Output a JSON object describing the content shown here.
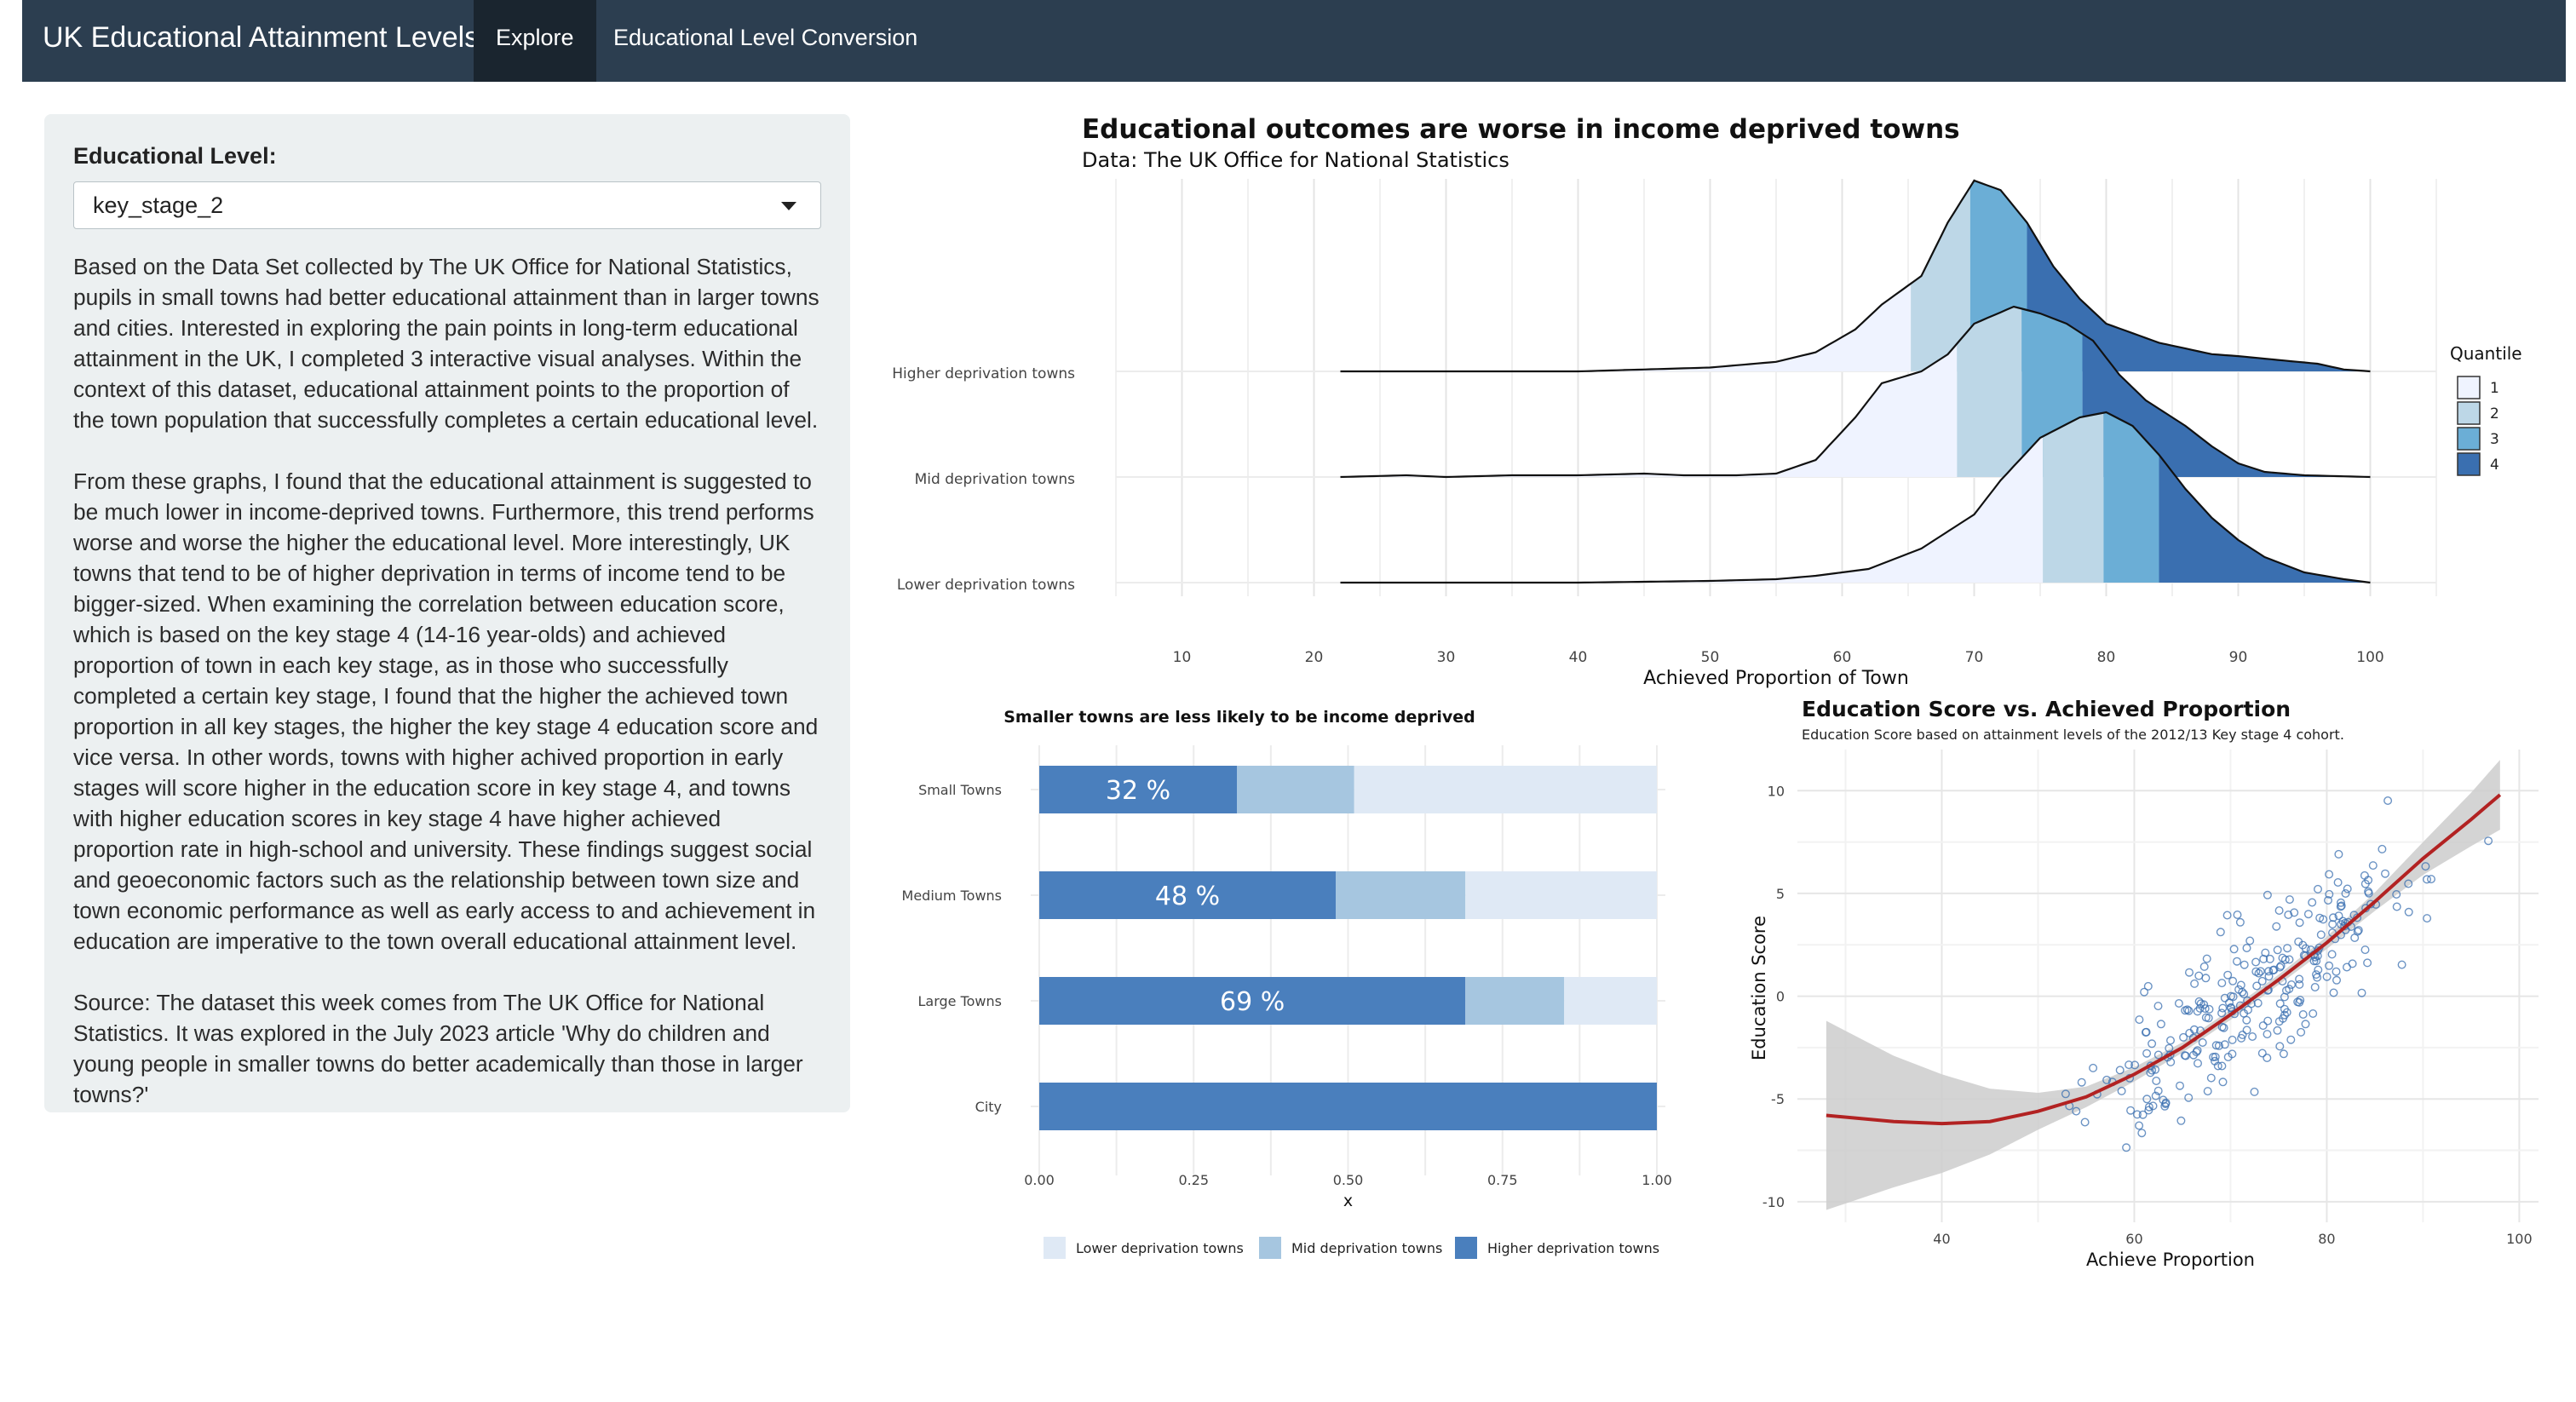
{
  "navbar": {
    "title": "UK Educational Attainment Levels",
    "tabs": [
      {
        "label": "Explore",
        "active": true
      },
      {
        "label": "Educational Level Conversion",
        "active": false
      }
    ],
    "background_color": "#2c3e50"
  },
  "sidebar": {
    "label": "Educational Level:",
    "select_value": "key_stage_2",
    "paragraphs": [
      "Based on the Data Set collected by The UK Office for National Statistics, pupils in small towns had better educational attainment than in larger towns and cities. Interested in exploring the pain points in long-term educational attainment in the UK, I completed 3 interactive visual analyses. Within the context of this dataset, educational attainment points to the proportion of the town population that successfully completes a certain educational level.",
      "From these graphs, I found that the educational attainment is suggested to be much lower in income-deprived towns. Furthermore, this trend performs worse and worse the higher the educational level. More interestingly, UK towns that tend to be of higher deprivation in terms of income tend to be bigger-sized. When examining the correlation between education score, which is based on the key stage 4 (14-16 year-olds) and achieved proportion of town in each key stage, as in those who successfully completed a certain key stage, I found that the higher the achieved town proportion in all key stages, the higher the key stage 4 education score and vice versa. In other words, towns with higher achived proportion in early stages will score higher in the education score in key stage 4, and towns with higher education scores in key stage 4 have higher achieved proportion rate in high-school and university. These findings suggest social and geoeconomic factors such as the relationship between town size and town economic performance as well as early access to and achievement in education are imperative to the town overall educational attainment level.",
      "Source: The dataset this week comes from The UK Office for National Statistics. It was explored in the July 2023 article 'Why do children and young people in smaller towns do better academically than those in larger towns?'"
    ]
  },
  "chart_data": [
    {
      "type": "area",
      "title": "Educational outcomes are worse in income deprived towns",
      "subtitle": "Data: The UK Office for National Statistics",
      "xlabel": "Achieved Proportion of Town",
      "ylabel": "",
      "x_ticks": [
        10,
        20,
        30,
        40,
        50,
        60,
        70,
        80,
        90,
        100
      ],
      "xlim": [
        5,
        105
      ],
      "legend_title": "Quantile",
      "legend_labels": [
        "1",
        "2",
        "3",
        "4"
      ],
      "legend_position": "right",
      "quantile_colors": [
        "#eff3ff",
        "#bdd7e7",
        "#6baed6",
        "#3a6fb0"
      ],
      "series": [
        {
          "name": "Higher deprivation towns",
          "x": [
            22,
            40,
            45,
            50,
            55,
            58,
            61,
            63,
            66,
            68,
            70,
            72,
            74,
            76,
            78,
            80,
            82,
            84,
            86,
            88,
            90,
            93,
            96,
            98,
            100
          ],
          "density": [
            0.0,
            0.0,
            0.01,
            0.02,
            0.05,
            0.1,
            0.22,
            0.35,
            0.5,
            0.78,
            1.0,
            0.95,
            0.78,
            0.55,
            0.38,
            0.25,
            0.2,
            0.15,
            0.12,
            0.09,
            0.08,
            0.06,
            0.04,
            0.01,
            0.0
          ],
          "quantile_breaks": [
            65.2,
            69.7,
            74.0
          ]
        },
        {
          "name": "Mid deprivation towns",
          "x": [
            22,
            27,
            30,
            35,
            40,
            45,
            48,
            52,
            55,
            58,
            61,
            63,
            66,
            68,
            70,
            73,
            75,
            77,
            79,
            81,
            83,
            86,
            88,
            90,
            92,
            95,
            100
          ],
          "density": [
            0.0,
            0.01,
            0.0,
            0.01,
            0.01,
            0.02,
            0.01,
            0.01,
            0.02,
            0.1,
            0.35,
            0.55,
            0.62,
            0.72,
            0.9,
            1.0,
            0.96,
            0.9,
            0.8,
            0.6,
            0.45,
            0.3,
            0.18,
            0.08,
            0.03,
            0.01,
            0.0
          ],
          "quantile_breaks": [
            68.7,
            73.6,
            78.2
          ]
        },
        {
          "name": "Lower deprivation towns",
          "x": [
            22,
            40,
            50,
            55,
            58,
            62,
            66,
            70,
            72,
            75,
            78,
            80,
            82,
            84,
            86,
            88,
            90,
            92,
            95,
            98,
            100
          ],
          "density": [
            0.0,
            0.0,
            0.01,
            0.02,
            0.04,
            0.08,
            0.2,
            0.4,
            0.6,
            0.85,
            0.97,
            1.0,
            0.92,
            0.75,
            0.55,
            0.38,
            0.25,
            0.15,
            0.06,
            0.02,
            0.0
          ],
          "quantile_breaks": [
            75.2,
            79.8,
            84.0
          ]
        }
      ]
    },
    {
      "type": "bar",
      "title": "Smaller towns are less likely to be income deprived",
      "xlabel": "x",
      "categories": [
        "Small Towns",
        "Medium Towns",
        "Large Towns",
        "City"
      ],
      "x_ticks": [
        "0.00",
        "0.25",
        "0.50",
        "0.75",
        "1.00"
      ],
      "xlim": [
        0,
        1
      ],
      "legend_position": "bottom",
      "series": [
        {
          "name": "Higher deprivation towns",
          "values": [
            0.32,
            0.48,
            0.69,
            1.0
          ],
          "color": "#4a7fbd"
        },
        {
          "name": "Mid deprivation towns",
          "values": [
            0.19,
            0.21,
            0.16,
            0.0
          ],
          "color": "#a6c6e0"
        },
        {
          "name": "Lower deprivation towns",
          "values": [
            0.49,
            0.31,
            0.15,
            0.0
          ],
          "color": "#dfe9f5"
        }
      ],
      "data_labels": [
        "32 %",
        "48 %",
        "69 %",
        ""
      ]
    },
    {
      "type": "scatter",
      "title": "Education Score vs. Achieved Proportion",
      "subtitle": "Education Score based on attainment levels of the 2012/13 Key stage 4 cohort.",
      "xlabel": "Achieve Proportion",
      "ylabel": "Education Score",
      "x_ticks": [
        40,
        60,
        80,
        100
      ],
      "y_ticks": [
        10,
        5,
        0,
        -5,
        -10
      ],
      "xlim": [
        25,
        102
      ],
      "ylim": [
        -11,
        12
      ],
      "point_color": "#3a6fb0",
      "trend_color": "#b22222",
      "trend": {
        "x": [
          28,
          35,
          40,
          45,
          50,
          55,
          60,
          65,
          70,
          75,
          80,
          85,
          90,
          95,
          98
        ],
        "y": [
          -5.8,
          -6.1,
          -6.2,
          -6.1,
          -5.6,
          -4.9,
          -3.8,
          -2.5,
          -0.9,
          0.8,
          2.6,
          4.6,
          6.7,
          8.6,
          9.8
        ],
        "band": [
          4.6,
          3.2,
          2.4,
          1.6,
          0.9,
          0.5,
          0.35,
          0.25,
          0.25,
          0.25,
          0.3,
          0.45,
          0.8,
          1.3,
          1.7
        ]
      },
      "points": [
        {
          "n": 280,
          "mean_x": 72,
          "sd_x": 9,
          "slope": 0.32,
          "noise": 1.8
        }
      ]
    }
  ]
}
